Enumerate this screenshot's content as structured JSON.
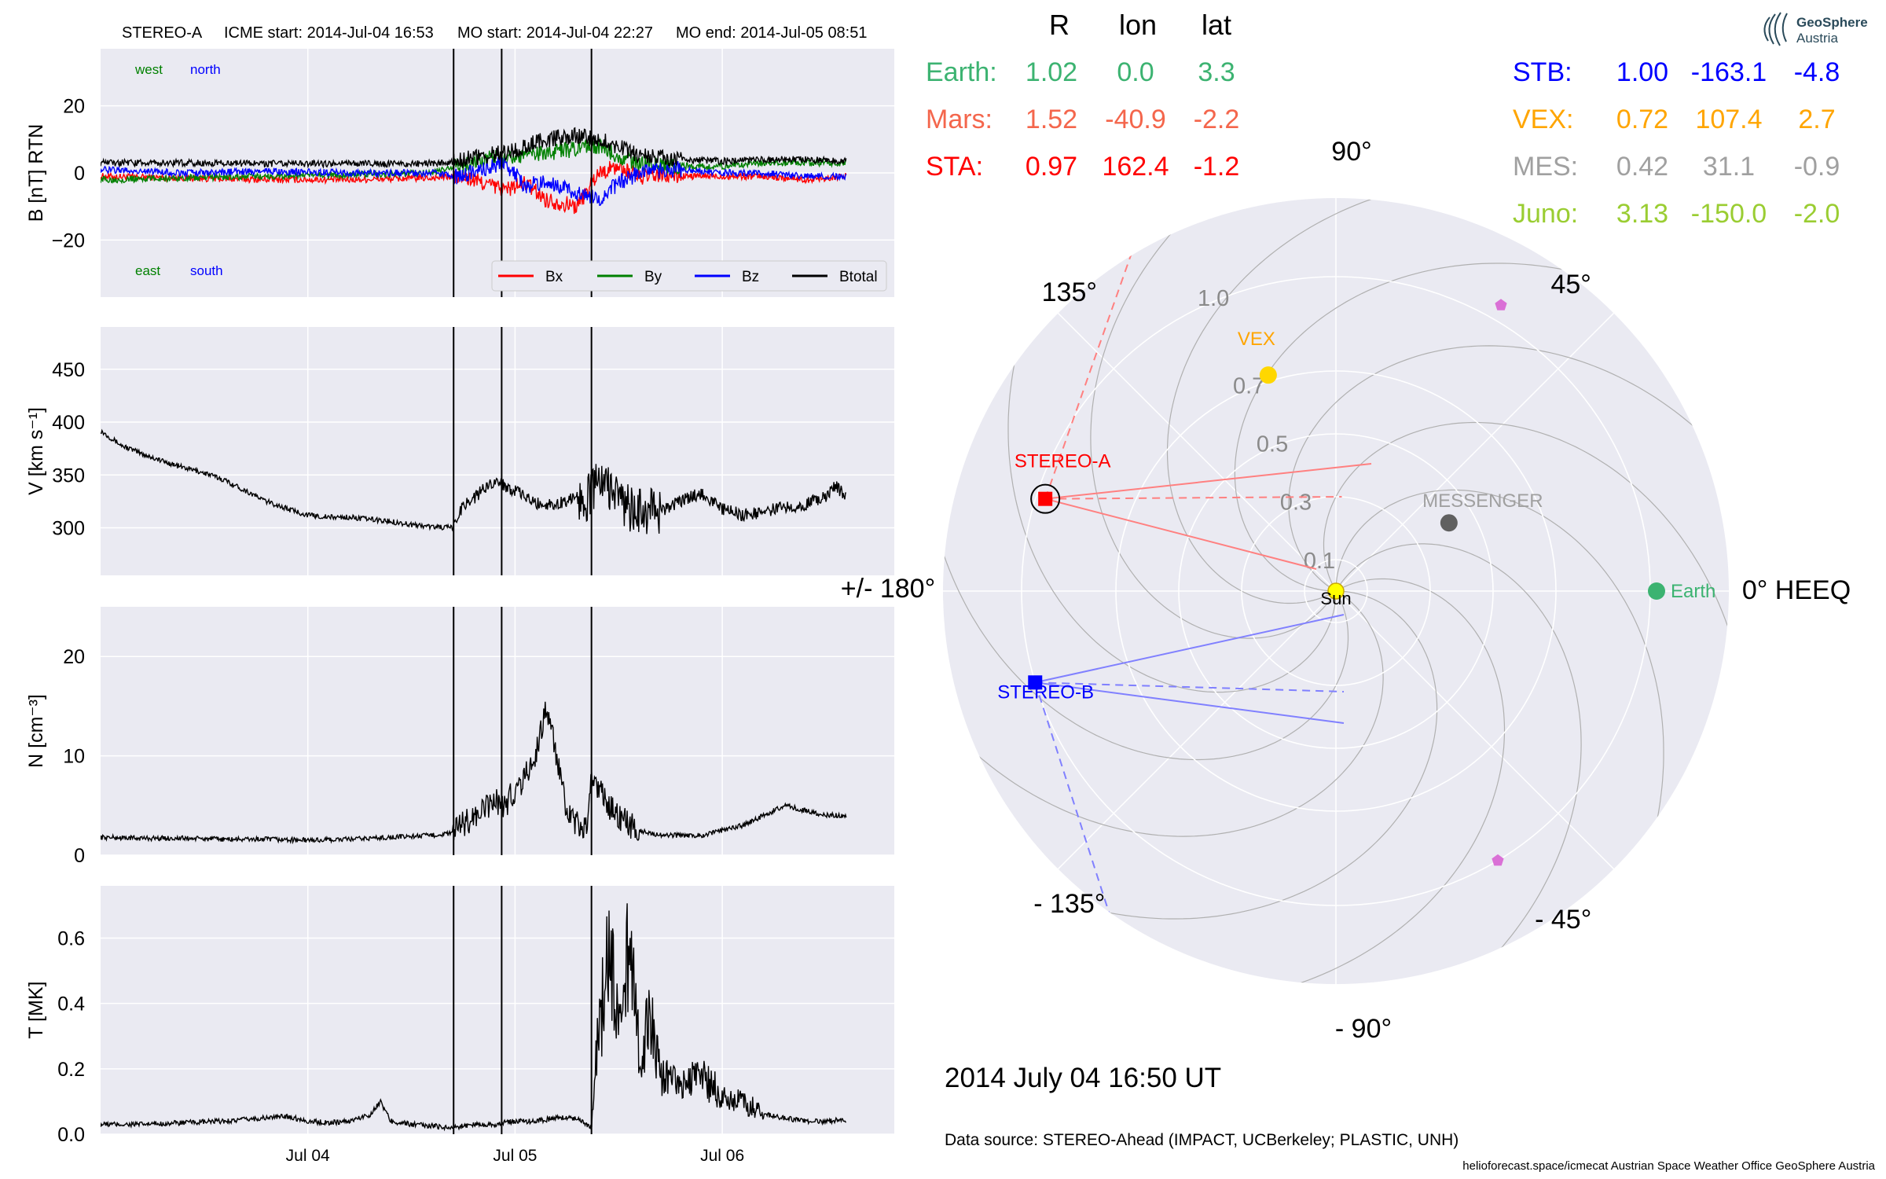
{
  "header": {
    "spacecraft": "STEREO-A",
    "icme_start": "ICME start: 2014-Jul-04 16:53",
    "mo_start": "MO start: 2014-Jul-04 22:27",
    "mo_end": "MO end: 2014-Jul-05 08:51"
  },
  "footer": {
    "datetime": "2014 July 04  16:50 UT",
    "data_source": "Data source: STEREO-Ahead (IMPACT, UCBerkeley; PLASTIC, UNH)",
    "credits": "helioforecast.space/icmecat   Austrian Space Weather Office   GeoSphere Austria"
  },
  "logo": {
    "line1": "GeoSphere",
    "line2": "Austria"
  },
  "colors": {
    "panel_bg": "#eaeaf2",
    "grid": "#ffffff",
    "bx": "#ff0000",
    "by": "#008000",
    "bz": "#0000ff",
    "btotal": "#000000",
    "earth": "#3cb371",
    "mars": "#f4664c",
    "sta": "#ff0000",
    "stb": "#0000ff",
    "vex": "#ffa500",
    "mes": "#a0a0a0",
    "juno": "#9acd32",
    "sun": "#ffff00"
  },
  "time_axis": {
    "ticks": [
      {
        "day": 1,
        "label": "Jul 04"
      },
      {
        "day": 2,
        "label": "Jul 05"
      },
      {
        "day": 3,
        "label": "Jul 06"
      }
    ],
    "event_lines_days": [
      1.7035,
      1.9354,
      2.3688
    ]
  },
  "position_table": {
    "header": [
      "R",
      "lon",
      "lat"
    ],
    "left_rows": [
      {
        "name": "Earth:",
        "R": "1.02",
        "lon": "0.0",
        "lat": "3.3",
        "color": "#3cb371"
      },
      {
        "name": "Mars:",
        "R": "1.52",
        "lon": "-40.9",
        "lat": "-2.2",
        "color": "#f4664c"
      },
      {
        "name": "STA:",
        "R": "0.97",
        "lon": "162.4",
        "lat": "-1.2",
        "color": "#ff0000"
      }
    ],
    "right_rows": [
      {
        "name": "STB:",
        "R": "1.00",
        "lon": "-163.1",
        "lat": "-4.8",
        "color": "#0000ff"
      },
      {
        "name": "VEX:",
        "R": "0.72",
        "lon": "107.4",
        "lat": "2.7",
        "color": "#ffa500"
      },
      {
        "name": "MES:",
        "R": "0.42",
        "lon": "31.1",
        "lat": "-0.9",
        "color": "#a0a0a0"
      },
      {
        "name": "Juno:",
        "R": "3.13",
        "lon": "-150.0",
        "lat": "-2.0",
        "color": "#9acd32"
      }
    ]
  },
  "chart_data": [
    {
      "type": "line",
      "name": "panel-b",
      "ylabel": "B [nT] RTN",
      "ylim": [
        -37,
        37
      ],
      "yticks": [
        {
          "v": 20,
          "label": "20"
        },
        {
          "v": 0,
          "label": "0"
        },
        {
          "v": -20,
          "label": "−20"
        }
      ],
      "corner_labels": {
        "west": "west",
        "north": "north",
        "east": "east",
        "south": "south"
      },
      "legend": {
        "placement": "lower-right"
      },
      "series": [
        {
          "name": "Bx",
          "color": "#ff0000",
          "x": [
            0,
            0.4,
            0.8,
            1.2,
            1.6,
            1.72,
            1.85,
            1.95,
            2.05,
            2.15,
            2.3,
            2.4,
            2.5,
            2.6,
            2.8,
            3.0,
            3.2,
            3.4,
            3.6
          ],
          "y": [
            -1,
            -1.5,
            -2,
            -2,
            -1.5,
            -1,
            -3,
            -5,
            -3,
            -8,
            -10,
            0,
            2,
            -1,
            -1,
            -1,
            -1,
            -2,
            -1
          ]
        },
        {
          "name": "By",
          "color": "#008000",
          "x": [
            0,
            0.4,
            0.8,
            1.2,
            1.6,
            1.72,
            1.85,
            1.95,
            2.05,
            2.15,
            2.3,
            2.4,
            2.5,
            2.6,
            2.8,
            3.0,
            3.2,
            3.4,
            3.6
          ],
          "y": [
            -2,
            -1.5,
            -1,
            -0.5,
            0,
            2,
            4,
            5,
            5,
            6,
            7,
            8,
            5,
            3,
            2,
            2,
            3,
            3,
            3
          ]
        },
        {
          "name": "Bz",
          "color": "#0000ff",
          "x": [
            0,
            0.4,
            0.8,
            1.2,
            1.6,
            1.72,
            1.85,
            1.95,
            2.05,
            2.15,
            2.3,
            2.4,
            2.5,
            2.6,
            2.8,
            3.0,
            3.2,
            3.4,
            3.6
          ],
          "y": [
            1,
            0,
            0.5,
            0,
            0,
            -1,
            1,
            3,
            -4,
            -2,
            -6,
            -8,
            -3,
            0,
            1,
            0,
            0,
            -1,
            -1
          ]
        },
        {
          "name": "Btotal",
          "color": "#000000",
          "x": [
            0,
            0.4,
            0.8,
            1.2,
            1.6,
            1.72,
            1.85,
            1.95,
            2.05,
            2.15,
            2.3,
            2.4,
            2.5,
            2.6,
            2.8,
            3.0,
            3.2,
            3.4,
            3.6
          ],
          "y": [
            3,
            3,
            2.8,
            2.7,
            2.8,
            3.5,
            5,
            6,
            8,
            10,
            11,
            10,
            8,
            5,
            4,
            3.5,
            4,
            4,
            3.5
          ]
        }
      ]
    },
    {
      "type": "line",
      "name": "panel-v",
      "ylabel": "V [km s⁻¹]",
      "ylim": [
        255,
        490
      ],
      "yticks": [
        {
          "v": 450,
          "label": "450"
        },
        {
          "v": 400,
          "label": "400"
        },
        {
          "v": 350,
          "label": "350"
        },
        {
          "v": 300,
          "label": "300"
        }
      ],
      "series": [
        {
          "name": "",
          "color": "#000000",
          "x": [
            0,
            0.1,
            0.2,
            0.3,
            0.4,
            0.5,
            0.6,
            0.7,
            0.8,
            0.9,
            1.0,
            1.1,
            1.2,
            1.3,
            1.4,
            1.5,
            1.6,
            1.7,
            1.75,
            1.8,
            1.9,
            2.0,
            2.1,
            2.2,
            2.3,
            2.35,
            2.4,
            2.45,
            2.5,
            2.55,
            2.6,
            2.7,
            2.8,
            2.9,
            3.0,
            3.1,
            3.2,
            3.3,
            3.4,
            3.5,
            3.55,
            3.6
          ],
          "y": [
            392,
            378,
            370,
            363,
            357,
            352,
            345,
            335,
            325,
            318,
            312,
            310,
            310,
            308,
            306,
            303,
            301,
            300,
            322,
            328,
            345,
            335,
            323,
            322,
            330,
            328,
            345,
            340,
            330,
            318,
            315,
            316,
            325,
            333,
            318,
            312,
            315,
            320,
            322,
            330,
            340,
            328
          ]
        }
      ]
    },
    {
      "type": "line",
      "name": "panel-n",
      "ylabel": "N [cm⁻³]",
      "ylim": [
        0,
        25
      ],
      "yticks": [
        {
          "v": 20,
          "label": "20"
        },
        {
          "v": 10,
          "label": "10"
        },
        {
          "v": 0,
          "label": "0"
        }
      ],
      "series": [
        {
          "name": "",
          "color": "#000000",
          "x": [
            0,
            0.2,
            0.4,
            0.6,
            0.8,
            1.0,
            1.2,
            1.4,
            1.6,
            1.7,
            1.75,
            1.8,
            1.85,
            1.9,
            1.95,
            2.0,
            2.05,
            2.1,
            2.15,
            2.2,
            2.25,
            2.3,
            2.35,
            2.37,
            2.4,
            2.45,
            2.5,
            2.55,
            2.6,
            2.7,
            2.8,
            2.9,
            3.0,
            3.1,
            3.2,
            3.3,
            3.4,
            3.5,
            3.6
          ],
          "y": [
            1.8,
            1.7,
            1.7,
            1.6,
            1.6,
            1.5,
            1.6,
            1.8,
            2.0,
            2.2,
            3.2,
            3.8,
            4.5,
            5.5,
            5.0,
            6.5,
            8.0,
            10.0,
            15.0,
            10.0,
            4.0,
            3.0,
            2.5,
            8.0,
            7.0,
            5.0,
            4.0,
            3.0,
            2.5,
            2.0,
            2.0,
            2.0,
            2.5,
            3.0,
            4.0,
            5.0,
            4.5,
            4.0,
            4.0
          ]
        }
      ]
    },
    {
      "type": "line",
      "name": "panel-t",
      "ylabel": "T [MK]",
      "ylim": [
        0,
        0.76
      ],
      "yticks": [
        {
          "v": 0.6,
          "label": "0.6"
        },
        {
          "v": 0.4,
          "label": "0.4"
        },
        {
          "v": 0.2,
          "label": "0.2"
        },
        {
          "v": 0.0,
          "label": "0.0"
        }
      ],
      "series": [
        {
          "name": "",
          "color": "#000000",
          "x": [
            0,
            0.2,
            0.4,
            0.6,
            0.8,
            0.9,
            1.0,
            1.1,
            1.2,
            1.3,
            1.35,
            1.4,
            1.5,
            1.6,
            1.7,
            1.8,
            1.9,
            2.0,
            2.1,
            2.2,
            2.3,
            2.37,
            2.4,
            2.45,
            2.5,
            2.55,
            2.6,
            2.65,
            2.7,
            2.8,
            2.9,
            3.0,
            3.1,
            3.2,
            3.3,
            3.4,
            3.5,
            3.6
          ],
          "y": [
            0.03,
            0.03,
            0.035,
            0.04,
            0.05,
            0.055,
            0.04,
            0.035,
            0.04,
            0.06,
            0.1,
            0.04,
            0.03,
            0.025,
            0.02,
            0.03,
            0.03,
            0.04,
            0.04,
            0.05,
            0.05,
            0.02,
            0.25,
            0.45,
            0.3,
            0.5,
            0.2,
            0.3,
            0.15,
            0.12,
            0.15,
            0.1,
            0.08,
            0.06,
            0.05,
            0.04,
            0.04,
            0.045
          ]
        }
      ]
    },
    {
      "type": "scatter",
      "name": "polar-positions",
      "projection": "polar",
      "r_ticks": [
        {
          "r": 0.1,
          "label": "0.1"
        },
        {
          "r": 0.3,
          "label": "0.3"
        },
        {
          "r": 0.5,
          "label": "0.5"
        },
        {
          "r": 0.7,
          "label": "0.7"
        },
        {
          "r": 1.0,
          "label": "1.0"
        }
      ],
      "r_max": 1.25,
      "angle_labels": [
        {
          "deg": 90,
          "label": "90°"
        },
        {
          "deg": 135,
          "label": "135°"
        },
        {
          "deg": 45,
          "label": "45°"
        },
        {
          "deg": 180,
          "label": "+/- 180°"
        },
        {
          "deg": 0,
          "label": "0° HEEQ"
        },
        {
          "deg": -135,
          "label": "- 135°"
        },
        {
          "deg": -45,
          "label": "- 45°"
        },
        {
          "deg": -90,
          "label": "- 90°"
        }
      ],
      "points": [
        {
          "name": "Earth",
          "label": "Earth",
          "r": 1.02,
          "lon": 0.0,
          "color": "#3cb371",
          "marker": "circle"
        },
        {
          "name": "VEX",
          "label": "VEX",
          "r": 0.72,
          "lon": 107.4,
          "color": "#ffd700",
          "label_color": "#ffa500",
          "marker": "circle"
        },
        {
          "name": "MESSENGER",
          "label": "MESSENGER",
          "r": 0.42,
          "lon": 31.1,
          "color": "#606060",
          "label_color": "#a0a0a0",
          "marker": "circle"
        },
        {
          "name": "STEREO-A",
          "label": "STEREO-A",
          "r": 0.97,
          "lon": 162.4,
          "color": "#ff0000",
          "marker": "square"
        },
        {
          "name": "STEREO-B",
          "label": "STEREO-B",
          "r": 1.0,
          "lon": -163.1,
          "color": "#0000ff",
          "marker": "square"
        },
        {
          "name": "Sun",
          "label": "Sun",
          "r": 0.0,
          "lon": 0.0,
          "color": "#ffff00",
          "marker": "circle"
        },
        {
          "name": "probe-north",
          "label": "",
          "r": 1.05,
          "lon": 60,
          "color": "#da70d6",
          "marker": "pentagon"
        },
        {
          "name": "probe-south",
          "label": "",
          "r": 1.0,
          "lon": -59,
          "color": "#da70d6",
          "marker": "pentagon"
        }
      ]
    }
  ]
}
